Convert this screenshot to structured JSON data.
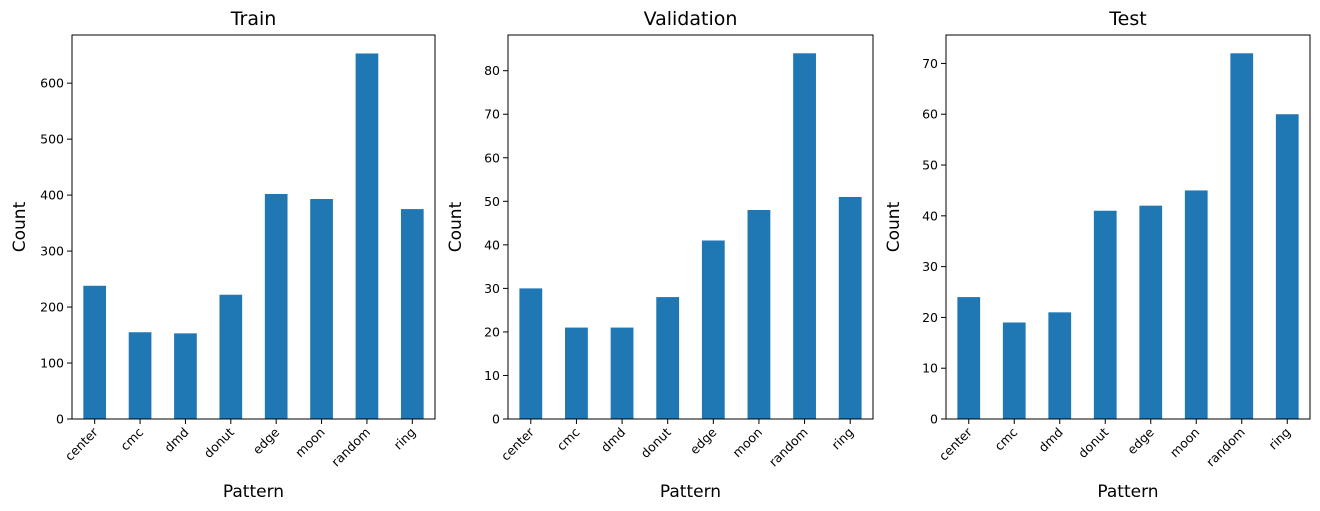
{
  "chart_data": [
    {
      "type": "bar",
      "title": "Train",
      "xlabel": "Pattern",
      "ylabel": "Count",
      "categories": [
        "center",
        "cmc",
        "dmd",
        "donut",
        "edge",
        "moon",
        "random",
        "ring"
      ],
      "values": [
        238,
        155,
        153,
        222,
        402,
        393,
        653,
        375
      ],
      "ylim": [
        0,
        686
      ],
      "yticks": [
        0,
        100,
        200,
        300,
        400,
        500,
        600
      ],
      "bar_color": "#1f77b4",
      "grid": false
    },
    {
      "type": "bar",
      "title": "Validation",
      "xlabel": "Pattern",
      "ylabel": "Count",
      "categories": [
        "center",
        "cmc",
        "dmd",
        "donut",
        "edge",
        "moon",
        "random",
        "ring"
      ],
      "values": [
        30,
        21,
        21,
        28,
        41,
        48,
        84,
        51
      ],
      "ylim": [
        0,
        88.2
      ],
      "yticks": [
        0,
        10,
        20,
        30,
        40,
        50,
        60,
        70,
        80
      ],
      "bar_color": "#1f77b4",
      "grid": false
    },
    {
      "type": "bar",
      "title": "Test",
      "xlabel": "Pattern",
      "ylabel": "Count",
      "categories": [
        "center",
        "cmc",
        "dmd",
        "donut",
        "edge",
        "moon",
        "random",
        "ring"
      ],
      "values": [
        24,
        19,
        21,
        41,
        42,
        45,
        72,
        60
      ],
      "ylim": [
        0,
        75.6
      ],
      "yticks": [
        0,
        10,
        20,
        30,
        40,
        50,
        60,
        70
      ],
      "bar_color": "#1f77b4",
      "grid": false
    }
  ]
}
